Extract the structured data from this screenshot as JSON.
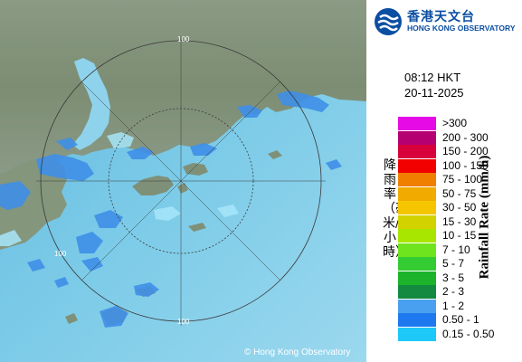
{
  "logo": {
    "name_zh": "香港天文台",
    "name_en": "HONG KONG OBSERVATORY"
  },
  "timestamp": {
    "time": "08:12 HKT",
    "date": "20-11-2025"
  },
  "legend": {
    "title_zh": "降雨率（毫米/小時）",
    "title_en": "Rainfall Rate (mm/h)",
    "items": [
      {
        "label": ">300",
        "color": "#e60be6"
      },
      {
        "label": "200 - 300",
        "color": "#b50072"
      },
      {
        "label": "150 - 200",
        "color": "#d8003a"
      },
      {
        "label": "100 - 150",
        "color": "#f20000"
      },
      {
        "label": "75 - 100",
        "color": "#f07f00"
      },
      {
        "label": "50 - 75",
        "color": "#f0aa00"
      },
      {
        "label": "30 - 50",
        "color": "#f5c600"
      },
      {
        "label": "15 - 30",
        "color": "#d2d200"
      },
      {
        "label": "10 - 15",
        "color": "#a8e600"
      },
      {
        "label": "7 - 10",
        "color": "#6ee41e"
      },
      {
        "label": "5 - 7",
        "color": "#33cc33"
      },
      {
        "label": "3 - 5",
        "color": "#1cb32b"
      },
      {
        "label": "2 - 3",
        "color": "#138a40"
      },
      {
        "label": "1 - 2",
        "color": "#4aa0f0"
      },
      {
        "label": "0.50 - 1",
        "color": "#1e78f0"
      },
      {
        "label": "0.15 - 0.50",
        "color": "#1ec8f8"
      }
    ]
  },
  "map": {
    "range_ring_labels": [
      "100",
      "100",
      "100"
    ],
    "copyright": "© Hong Kong Observatory"
  }
}
